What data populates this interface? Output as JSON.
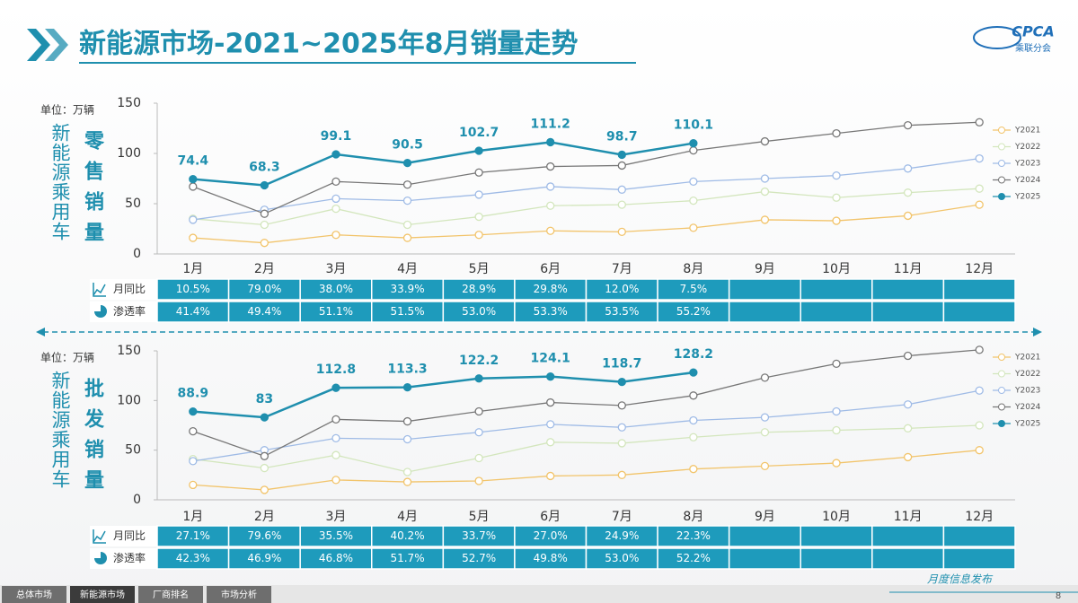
{
  "header": {
    "title": "新能源市场-2021~2025年8月销量走势",
    "logo_text": "CPCA",
    "logo_subtext": "乘联分会"
  },
  "chart_data": [
    {
      "type": "line",
      "unit": "单位：万辆",
      "side_label": "新能源乘用车",
      "title": "零售销量",
      "categories": [
        "1月",
        "2月",
        "3月",
        "4月",
        "5月",
        "6月",
        "7月",
        "8月",
        "9月",
        "10月",
        "11月",
        "12月"
      ],
      "ylim": [
        0,
        150
      ],
      "yticks": [
        0,
        50,
        100,
        150
      ],
      "legend": "right",
      "series": [
        {
          "name": "Y2021",
          "color": "#f2c46b",
          "values": [
            16,
            11,
            19,
            16,
            19,
            23,
            22,
            26,
            34,
            33,
            38,
            49
          ]
        },
        {
          "name": "Y2022",
          "color": "#d3e6bd",
          "values": [
            35,
            29,
            45,
            29,
            37,
            48,
            49,
            53,
            62,
            56,
            61,
            65
          ]
        },
        {
          "name": "Y2023",
          "color": "#9fbbe6",
          "values": [
            34,
            44,
            55,
            53,
            59,
            67,
            64,
            72,
            75,
            78,
            85,
            95
          ]
        },
        {
          "name": "Y2024",
          "color": "#777777",
          "values": [
            67,
            40,
            72,
            69,
            81,
            87,
            88,
            103,
            112,
            120,
            128,
            131
          ]
        },
        {
          "name": "Y2025",
          "color": "#1f8fae",
          "filled": true,
          "data_labels": true,
          "values": [
            74.4,
            68.3,
            99.1,
            90.5,
            102.7,
            111.2,
            98.7,
            110.1,
            null,
            null,
            null,
            null
          ]
        }
      ]
    },
    {
      "type": "line",
      "unit": "单位：万辆",
      "side_label": "新能源乘用车",
      "title": "批发销量",
      "categories": [
        "1月",
        "2月",
        "3月",
        "4月",
        "5月",
        "6月",
        "7月",
        "8月",
        "9月",
        "10月",
        "11月",
        "12月"
      ],
      "ylim": [
        0,
        150
      ],
      "yticks": [
        0,
        50,
        100,
        150
      ],
      "legend": "right",
      "series": [
        {
          "name": "Y2021",
          "color": "#f2c46b",
          "values": [
            15,
            10,
            20,
            18,
            19,
            24,
            25,
            31,
            34,
            37,
            43,
            50
          ]
        },
        {
          "name": "Y2022",
          "color": "#d3e6bd",
          "values": [
            41,
            32,
            45,
            28,
            42,
            58,
            57,
            63,
            68,
            70,
            72,
            75
          ]
        },
        {
          "name": "Y2023",
          "color": "#9fbbe6",
          "values": [
            39,
            50,
            62,
            61,
            68,
            76,
            73,
            80,
            83,
            89,
            96,
            110
          ]
        },
        {
          "name": "Y2024",
          "color": "#777777",
          "values": [
            69,
            44,
            81,
            79,
            89,
            98,
            95,
            105,
            123,
            137,
            145,
            151
          ]
        },
        {
          "name": "Y2025",
          "color": "#1f8fae",
          "filled": true,
          "data_labels": true,
          "values": [
            88.9,
            83.0,
            112.8,
            113.3,
            122.2,
            124.1,
            118.7,
            128.2,
            null,
            null,
            null,
            null
          ]
        }
      ]
    }
  ],
  "tables": [
    {
      "rows": [
        {
          "label": "月同比",
          "cells": [
            "10.5%",
            "79.0%",
            "38.0%",
            "33.9%",
            "28.9%",
            "29.8%",
            "12.0%",
            "7.5%"
          ]
        },
        {
          "label": "渗透率",
          "cells": [
            "41.4%",
            "49.4%",
            "51.1%",
            "51.5%",
            "53.0%",
            "53.3%",
            "53.5%",
            "55.2%"
          ]
        }
      ]
    },
    {
      "rows": [
        {
          "label": "月同比",
          "cells": [
            "27.1%",
            "79.6%",
            "35.5%",
            "40.2%",
            "33.7%",
            "27.0%",
            "24.9%",
            "22.3%"
          ]
        },
        {
          "label": "渗透率",
          "cells": [
            "42.3%",
            "46.9%",
            "46.8%",
            "51.7%",
            "52.7%",
            "49.8%",
            "53.0%",
            "52.2%"
          ]
        }
      ]
    }
  ],
  "footer": {
    "tabs": [
      "总体市场",
      "新能源市场",
      "厂商排名",
      "市场分析"
    ],
    "active_tab": 1,
    "caption": "月度信息发布",
    "page": "8"
  }
}
